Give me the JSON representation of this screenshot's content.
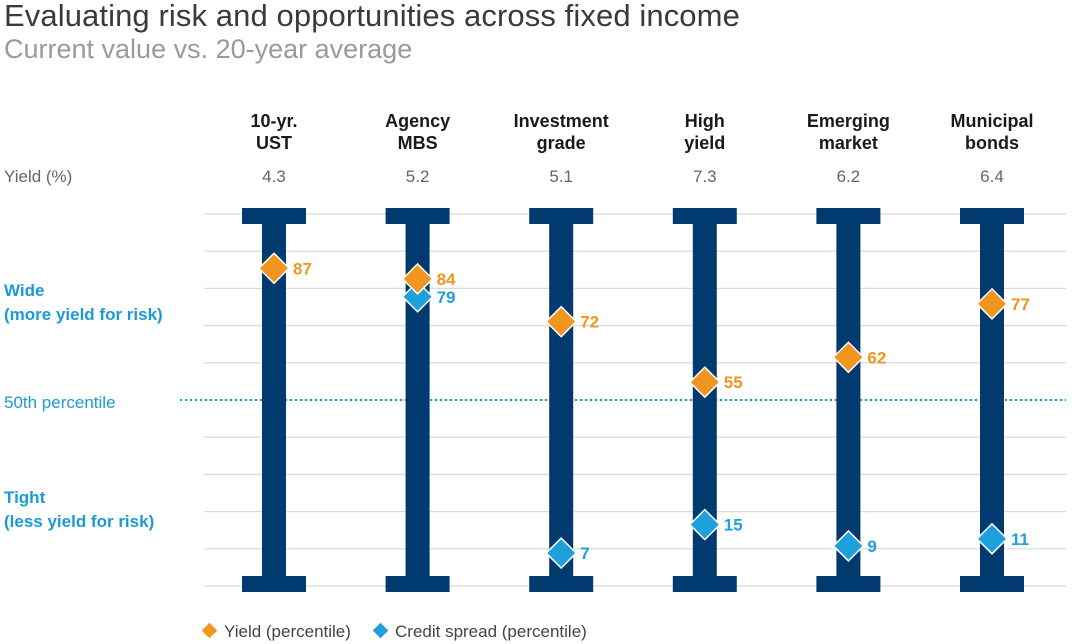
{
  "title": "Evaluating risk and opportunities across fixed income",
  "subtitle": "Current value vs. 20-year average",
  "labels": {
    "yield_row": "Yield (%)",
    "wide_line1": "Wide",
    "wide_line2": "(more yield for risk)",
    "p50": "50th percentile",
    "tight_line1": "Tight",
    "tight_line2": "(less yield for risk)"
  },
  "colors": {
    "bar": "#003a6e",
    "yield_marker": "#f0961e",
    "spread_marker": "#1ea0dc",
    "gridline": "#d9d9d9",
    "p50_line": "#1a9ad6"
  },
  "chart_data": {
    "type": "scatter",
    "title": "Evaluating risk and opportunities across fixed income",
    "subtitle": "Current value vs. 20-year average",
    "ylim": [
      0,
      100
    ],
    "reference_line": {
      "value": 50,
      "label": "50th percentile"
    },
    "categories": [
      {
        "line1": "10-yr.",
        "line2": "UST",
        "yield_pct": "4.3"
      },
      {
        "line1": "Agency",
        "line2": "MBS",
        "yield_pct": "5.2"
      },
      {
        "line1": "Investment",
        "line2": "grade",
        "yield_pct": "5.1"
      },
      {
        "line1": "High",
        "line2": "yield",
        "yield_pct": "7.3"
      },
      {
        "line1": "Emerging",
        "line2": "market",
        "yield_pct": "6.2"
      },
      {
        "line1": "Municipal",
        "line2": "bonds",
        "yield_pct": "6.4"
      }
    ],
    "series": [
      {
        "name": "Yield (percentile)",
        "values": [
          87,
          84,
          72,
          55,
          62,
          77
        ]
      },
      {
        "name": "Credit spread (percentile)",
        "values": [
          null,
          79,
          7,
          15,
          9,
          11
        ]
      }
    ],
    "legend": {
      "placement": "bottom-left"
    }
  }
}
